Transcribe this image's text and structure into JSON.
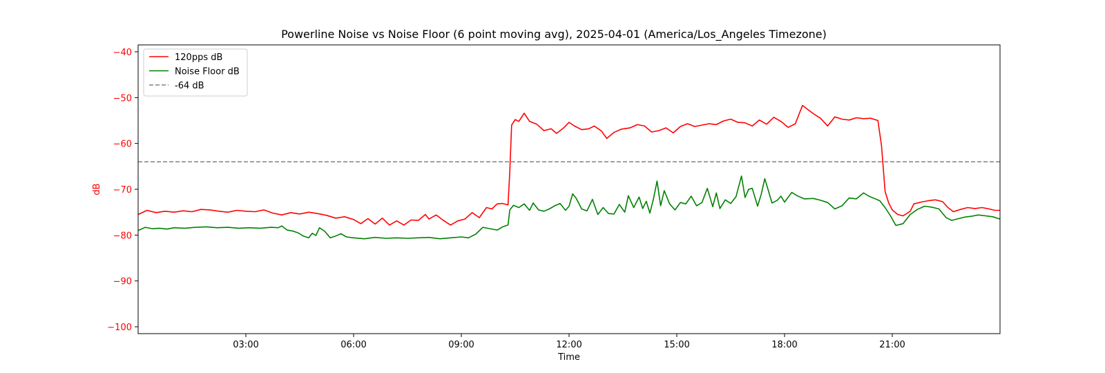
{
  "chart_data": {
    "type": "line",
    "title": "Powerline Noise vs Noise Floor (6 point moving avg), 2025-04-01 (America/Los_Angeles Timezone)",
    "xlabel": "Time",
    "ylabel": "dB",
    "x_unit": "hours",
    "xlim": [
      0,
      24
    ],
    "ylim": [
      -101.5,
      -38.5
    ],
    "x_ticks": [
      {
        "value": 3,
        "label": "03:00"
      },
      {
        "value": 6,
        "label": "06:00"
      },
      {
        "value": 9,
        "label": "09:00"
      },
      {
        "value": 12,
        "label": "12:00"
      },
      {
        "value": 15,
        "label": "15:00"
      },
      {
        "value": 18,
        "label": "18:00"
      },
      {
        "value": 21,
        "label": "21:00"
      }
    ],
    "y_ticks": [
      {
        "value": -40,
        "label": "−40"
      },
      {
        "value": -50,
        "label": "−50"
      },
      {
        "value": -60,
        "label": "−60"
      },
      {
        "value": -70,
        "label": "−70"
      },
      {
        "value": -80,
        "label": "−80"
      },
      {
        "value": -90,
        "label": "−90"
      },
      {
        "value": -100,
        "label": "−100"
      }
    ],
    "ytick_color": "#ff0000",
    "ylabel_color": "#ff0000",
    "grid": false,
    "legend_position": "upper left",
    "series": [
      {
        "name": "120pps dB",
        "color": "#ff0000",
        "style": "solid",
        "points": [
          [
            0.0,
            -75.5
          ],
          [
            0.25,
            -74.6
          ],
          [
            0.5,
            -75.1
          ],
          [
            0.75,
            -74.8
          ],
          [
            1.0,
            -75.0
          ],
          [
            1.25,
            -74.7
          ],
          [
            1.5,
            -74.9
          ],
          [
            1.75,
            -74.4
          ],
          [
            2.0,
            -74.5
          ],
          [
            2.25,
            -74.8
          ],
          [
            2.5,
            -75.0
          ],
          [
            2.75,
            -74.6
          ],
          [
            3.0,
            -74.8
          ],
          [
            3.25,
            -74.9
          ],
          [
            3.5,
            -74.5
          ],
          [
            3.75,
            -75.2
          ],
          [
            4.0,
            -75.6
          ],
          [
            4.25,
            -75.1
          ],
          [
            4.5,
            -75.4
          ],
          [
            4.75,
            -75.0
          ],
          [
            5.0,
            -75.3
          ],
          [
            5.25,
            -75.7
          ],
          [
            5.5,
            -76.3
          ],
          [
            5.75,
            -76.0
          ],
          [
            6.0,
            -76.6
          ],
          [
            6.2,
            -77.5
          ],
          [
            6.4,
            -76.4
          ],
          [
            6.6,
            -77.6
          ],
          [
            6.8,
            -76.3
          ],
          [
            7.0,
            -77.8
          ],
          [
            7.2,
            -76.9
          ],
          [
            7.4,
            -77.8
          ],
          [
            7.6,
            -76.7
          ],
          [
            7.8,
            -76.8
          ],
          [
            8.0,
            -75.5
          ],
          [
            8.1,
            -76.5
          ],
          [
            8.3,
            -75.6
          ],
          [
            8.5,
            -76.8
          ],
          [
            8.7,
            -77.8
          ],
          [
            8.9,
            -76.9
          ],
          [
            9.1,
            -76.5
          ],
          [
            9.3,
            -75.1
          ],
          [
            9.5,
            -76.2
          ],
          [
            9.7,
            -74.0
          ],
          [
            9.85,
            -74.3
          ],
          [
            10.0,
            -73.2
          ],
          [
            10.15,
            -73.1
          ],
          [
            10.3,
            -73.4
          ],
          [
            10.35,
            -66.0
          ],
          [
            10.4,
            -56.0
          ],
          [
            10.5,
            -54.8
          ],
          [
            10.6,
            -55.2
          ],
          [
            10.75,
            -53.4
          ],
          [
            10.9,
            -55.2
          ],
          [
            11.1,
            -55.8
          ],
          [
            11.3,
            -57.2
          ],
          [
            11.5,
            -56.8
          ],
          [
            11.65,
            -57.8
          ],
          [
            11.85,
            -56.6
          ],
          [
            12.0,
            -55.4
          ],
          [
            12.15,
            -56.2
          ],
          [
            12.35,
            -57.0
          ],
          [
            12.55,
            -56.8
          ],
          [
            12.7,
            -56.2
          ],
          [
            12.9,
            -57.3
          ],
          [
            13.05,
            -58.9
          ],
          [
            13.25,
            -57.6
          ],
          [
            13.45,
            -56.9
          ],
          [
            13.7,
            -56.6
          ],
          [
            13.9,
            -55.9
          ],
          [
            14.1,
            -56.2
          ],
          [
            14.3,
            -57.5
          ],
          [
            14.5,
            -57.2
          ],
          [
            14.7,
            -56.6
          ],
          [
            14.9,
            -57.7
          ],
          [
            15.1,
            -56.3
          ],
          [
            15.3,
            -55.7
          ],
          [
            15.5,
            -56.3
          ],
          [
            15.7,
            -56.0
          ],
          [
            15.9,
            -55.7
          ],
          [
            16.1,
            -55.9
          ],
          [
            16.3,
            -55.1
          ],
          [
            16.5,
            -54.7
          ],
          [
            16.7,
            -55.4
          ],
          [
            16.9,
            -55.5
          ],
          [
            17.1,
            -56.2
          ],
          [
            17.3,
            -54.9
          ],
          [
            17.5,
            -55.8
          ],
          [
            17.7,
            -54.3
          ],
          [
            17.9,
            -55.2
          ],
          [
            18.1,
            -56.5
          ],
          [
            18.3,
            -55.7
          ],
          [
            18.5,
            -51.7
          ],
          [
            18.65,
            -52.6
          ],
          [
            18.8,
            -53.5
          ],
          [
            19.0,
            -54.5
          ],
          [
            19.2,
            -56.2
          ],
          [
            19.4,
            -54.2
          ],
          [
            19.6,
            -54.7
          ],
          [
            19.8,
            -54.9
          ],
          [
            20.0,
            -54.4
          ],
          [
            20.2,
            -54.6
          ],
          [
            20.4,
            -54.5
          ],
          [
            20.6,
            -55.0
          ],
          [
            20.7,
            -60.5
          ],
          [
            20.8,
            -70.5
          ],
          [
            20.9,
            -73.0
          ],
          [
            21.0,
            -74.5
          ],
          [
            21.15,
            -75.5
          ],
          [
            21.3,
            -75.8
          ],
          [
            21.5,
            -74.8
          ],
          [
            21.6,
            -73.2
          ],
          [
            21.8,
            -72.8
          ],
          [
            22.0,
            -72.5
          ],
          [
            22.2,
            -72.3
          ],
          [
            22.4,
            -72.7
          ],
          [
            22.55,
            -74.0
          ],
          [
            22.7,
            -74.9
          ],
          [
            22.9,
            -74.4
          ],
          [
            23.1,
            -74.0
          ],
          [
            23.3,
            -74.2
          ],
          [
            23.5,
            -74.0
          ],
          [
            23.7,
            -74.3
          ],
          [
            23.85,
            -74.6
          ],
          [
            24.0,
            -74.6
          ]
        ]
      },
      {
        "name": "Noise Floor dB",
        "color": "#008000",
        "style": "solid",
        "points": [
          [
            0.0,
            -79.0
          ],
          [
            0.2,
            -78.3
          ],
          [
            0.4,
            -78.6
          ],
          [
            0.6,
            -78.5
          ],
          [
            0.8,
            -78.7
          ],
          [
            1.0,
            -78.4
          ],
          [
            1.3,
            -78.5
          ],
          [
            1.6,
            -78.3
          ],
          [
            1.9,
            -78.2
          ],
          [
            2.2,
            -78.4
          ],
          [
            2.5,
            -78.3
          ],
          [
            2.8,
            -78.5
          ],
          [
            3.1,
            -78.4
          ],
          [
            3.4,
            -78.5
          ],
          [
            3.7,
            -78.3
          ],
          [
            3.9,
            -78.4
          ],
          [
            4.0,
            -78.0
          ],
          [
            4.15,
            -78.9
          ],
          [
            4.3,
            -79.1
          ],
          [
            4.45,
            -79.5
          ],
          [
            4.6,
            -80.2
          ],
          [
            4.75,
            -80.6
          ],
          [
            4.85,
            -79.6
          ],
          [
            4.95,
            -80.1
          ],
          [
            5.05,
            -78.4
          ],
          [
            5.2,
            -79.2
          ],
          [
            5.35,
            -80.6
          ],
          [
            5.5,
            -80.2
          ],
          [
            5.65,
            -79.7
          ],
          [
            5.8,
            -80.4
          ],
          [
            6.0,
            -80.6
          ],
          [
            6.3,
            -80.8
          ],
          [
            6.6,
            -80.5
          ],
          [
            6.9,
            -80.7
          ],
          [
            7.2,
            -80.6
          ],
          [
            7.5,
            -80.7
          ],
          [
            7.8,
            -80.6
          ],
          [
            8.1,
            -80.5
          ],
          [
            8.4,
            -80.8
          ],
          [
            8.7,
            -80.6
          ],
          [
            9.0,
            -80.4
          ],
          [
            9.2,
            -80.6
          ],
          [
            9.4,
            -79.8
          ],
          [
            9.6,
            -78.3
          ],
          [
            9.8,
            -78.6
          ],
          [
            10.0,
            -78.9
          ],
          [
            10.15,
            -78.2
          ],
          [
            10.3,
            -77.8
          ],
          [
            10.35,
            -74.5
          ],
          [
            10.45,
            -73.5
          ],
          [
            10.6,
            -74.0
          ],
          [
            10.75,
            -73.2
          ],
          [
            10.9,
            -74.6
          ],
          [
            11.0,
            -73.0
          ],
          [
            11.15,
            -74.5
          ],
          [
            11.3,
            -74.8
          ],
          [
            11.45,
            -74.3
          ],
          [
            11.6,
            -73.6
          ],
          [
            11.75,
            -73.1
          ],
          [
            11.9,
            -74.6
          ],
          [
            12.0,
            -73.7
          ],
          [
            12.1,
            -71.0
          ],
          [
            12.2,
            -72.0
          ],
          [
            12.35,
            -74.3
          ],
          [
            12.5,
            -74.7
          ],
          [
            12.65,
            -72.2
          ],
          [
            12.8,
            -75.5
          ],
          [
            12.95,
            -74.0
          ],
          [
            13.1,
            -75.3
          ],
          [
            13.25,
            -75.4
          ],
          [
            13.4,
            -73.3
          ],
          [
            13.55,
            -75.0
          ],
          [
            13.65,
            -71.4
          ],
          [
            13.8,
            -74.0
          ],
          [
            13.95,
            -71.7
          ],
          [
            14.05,
            -74.2
          ],
          [
            14.15,
            -72.6
          ],
          [
            14.25,
            -75.2
          ],
          [
            14.35,
            -72.1
          ],
          [
            14.45,
            -68.2
          ],
          [
            14.55,
            -73.6
          ],
          [
            14.65,
            -70.3
          ],
          [
            14.8,
            -73.2
          ],
          [
            14.95,
            -74.5
          ],
          [
            15.1,
            -72.9
          ],
          [
            15.25,
            -73.2
          ],
          [
            15.4,
            -71.5
          ],
          [
            15.55,
            -73.6
          ],
          [
            15.7,
            -72.9
          ],
          [
            15.85,
            -69.8
          ],
          [
            16.0,
            -73.8
          ],
          [
            16.1,
            -70.8
          ],
          [
            16.2,
            -74.2
          ],
          [
            16.35,
            -72.3
          ],
          [
            16.5,
            -73.1
          ],
          [
            16.65,
            -71.6
          ],
          [
            16.8,
            -67.1
          ],
          [
            16.9,
            -71.8
          ],
          [
            17.0,
            -70.0
          ],
          [
            17.1,
            -69.8
          ],
          [
            17.25,
            -73.7
          ],
          [
            17.35,
            -71.1
          ],
          [
            17.45,
            -67.7
          ],
          [
            17.55,
            -70.3
          ],
          [
            17.65,
            -73.0
          ],
          [
            17.8,
            -72.4
          ],
          [
            17.9,
            -71.5
          ],
          [
            18.0,
            -72.8
          ],
          [
            18.2,
            -70.7
          ],
          [
            18.35,
            -71.4
          ],
          [
            18.55,
            -72.1
          ],
          [
            18.8,
            -72.0
          ],
          [
            19.0,
            -72.4
          ],
          [
            19.2,
            -72.9
          ],
          [
            19.4,
            -74.3
          ],
          [
            19.6,
            -73.6
          ],
          [
            19.8,
            -71.9
          ],
          [
            20.0,
            -72.1
          ],
          [
            20.2,
            -70.8
          ],
          [
            20.35,
            -71.5
          ],
          [
            20.5,
            -72.0
          ],
          [
            20.65,
            -72.5
          ],
          [
            20.8,
            -74.0
          ],
          [
            20.95,
            -75.8
          ],
          [
            21.1,
            -77.9
          ],
          [
            21.3,
            -77.5
          ],
          [
            21.5,
            -75.5
          ],
          [
            21.7,
            -74.4
          ],
          [
            21.9,
            -73.7
          ],
          [
            22.1,
            -73.9
          ],
          [
            22.3,
            -74.3
          ],
          [
            22.5,
            -76.2
          ],
          [
            22.65,
            -76.8
          ],
          [
            22.8,
            -76.5
          ],
          [
            23.0,
            -76.1
          ],
          [
            23.2,
            -75.9
          ],
          [
            23.4,
            -75.6
          ],
          [
            23.6,
            -75.8
          ],
          [
            23.8,
            -76.0
          ],
          [
            24.0,
            -76.5
          ]
        ]
      },
      {
        "name": "-64 dB",
        "color": "#808080",
        "style": "dashed",
        "points": [
          [
            0,
            -64
          ],
          [
            24,
            -64
          ]
        ]
      }
    ]
  }
}
